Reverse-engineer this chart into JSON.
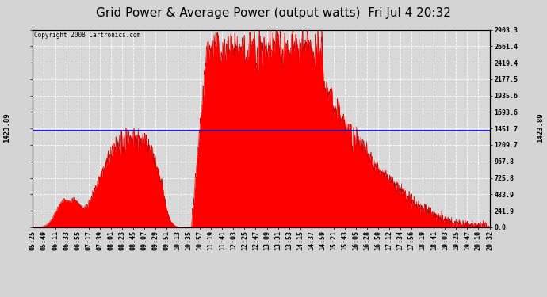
{
  "title": "Grid Power & Average Power (output watts)  Fri Jul 4 20:32",
  "copyright": "Copyright 2008 Cartronics.com",
  "avg_power": 1423.89,
  "ylim": [
    0.0,
    2903.3
  ],
  "yticks": [
    0.0,
    241.9,
    483.9,
    725.8,
    967.8,
    1209.7,
    1451.7,
    1693.6,
    1935.6,
    2177.5,
    2419.4,
    2661.4,
    2903.3
  ],
  "xtick_labels": [
    "05:25",
    "05:49",
    "06:11",
    "06:33",
    "06:55",
    "07:17",
    "07:39",
    "08:01",
    "08:23",
    "08:45",
    "09:07",
    "09:29",
    "09:51",
    "10:13",
    "10:35",
    "10:57",
    "11:19",
    "11:41",
    "12:03",
    "12:25",
    "12:47",
    "13:09",
    "13:31",
    "13:53",
    "14:15",
    "14:37",
    "14:59",
    "15:21",
    "15:43",
    "16:05",
    "16:28",
    "16:50",
    "17:12",
    "17:34",
    "17:56",
    "18:19",
    "18:41",
    "19:03",
    "19:25",
    "19:47",
    "20:10",
    "20:32"
  ],
  "background_color": "#d4d4d4",
  "plot_bg": "#d8d8d8",
  "fill_color": "#ff0000",
  "line_color": "#cc0000",
  "avg_line_color": "#0000bb",
  "title_fontsize": 11,
  "tick_fontsize": 6,
  "grid_color": "#ffffff",
  "border_color": "#000000"
}
